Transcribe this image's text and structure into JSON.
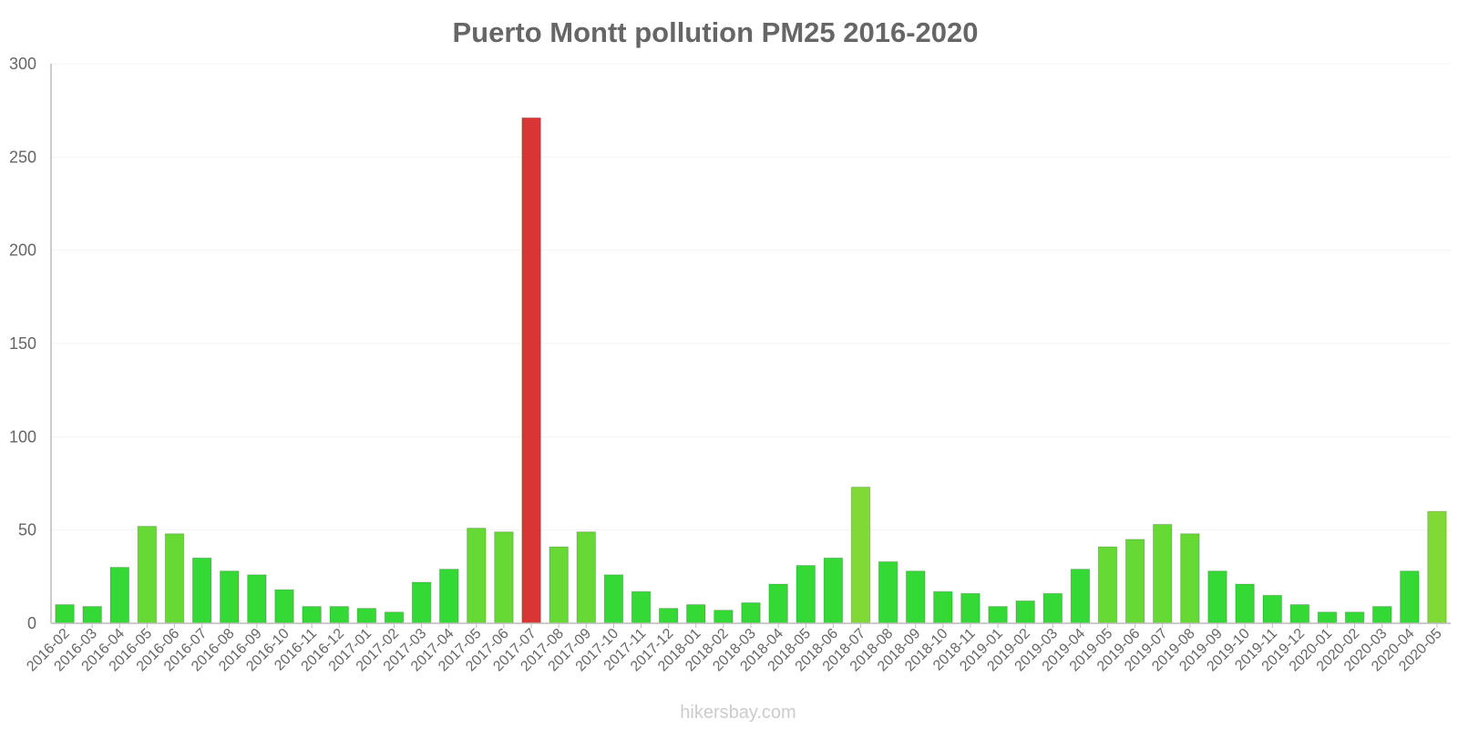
{
  "chart_data": {
    "type": "bar",
    "title": "Puerto Montt pollution PM25 2016-2020",
    "xlabel": "",
    "ylabel": "",
    "ylim": [
      0,
      300
    ],
    "yticks": [
      0,
      50,
      100,
      150,
      200,
      250,
      300
    ],
    "grid": true,
    "categories": [
      "2016-02",
      "2016-03",
      "2016-04",
      "2016-05",
      "2016-06",
      "2016-07",
      "2016-08",
      "2016-09",
      "2016-10",
      "2016-11",
      "2016-12",
      "2017-01",
      "2017-02",
      "2017-03",
      "2017-04",
      "2017-05",
      "2017-06",
      "2017-07",
      "2017-08",
      "2017-09",
      "2017-10",
      "2017-11",
      "2017-12",
      "2018-01",
      "2018-02",
      "2018-03",
      "2018-04",
      "2018-05",
      "2018-06",
      "2018-07",
      "2018-08",
      "2018-09",
      "2018-10",
      "2018-11",
      "2019-01",
      "2019-02",
      "2019-03",
      "2019-04",
      "2019-05",
      "2019-06",
      "2019-07",
      "2019-08",
      "2019-09",
      "2019-10",
      "2019-11",
      "2019-12",
      "2020-01",
      "2020-02",
      "2020-03",
      "2020-04",
      "2020-05"
    ],
    "values": [
      10,
      9,
      30,
      52,
      48,
      35,
      28,
      26,
      18,
      9,
      9,
      8,
      6,
      22,
      29,
      51,
      49,
      271,
      41,
      49,
      26,
      17,
      8,
      10,
      7,
      11,
      21,
      31,
      35,
      73,
      33,
      28,
      17,
      16,
      9,
      12,
      16,
      29,
      41,
      45,
      53,
      48,
      28,
      21,
      15,
      10,
      6,
      6,
      9,
      28,
      60
    ],
    "colors": {
      "good": "#35d935",
      "moderate": "#66d935",
      "elevated": "#80d935",
      "hazardous": "#d93535"
    },
    "credit": "hikersbay.com"
  }
}
